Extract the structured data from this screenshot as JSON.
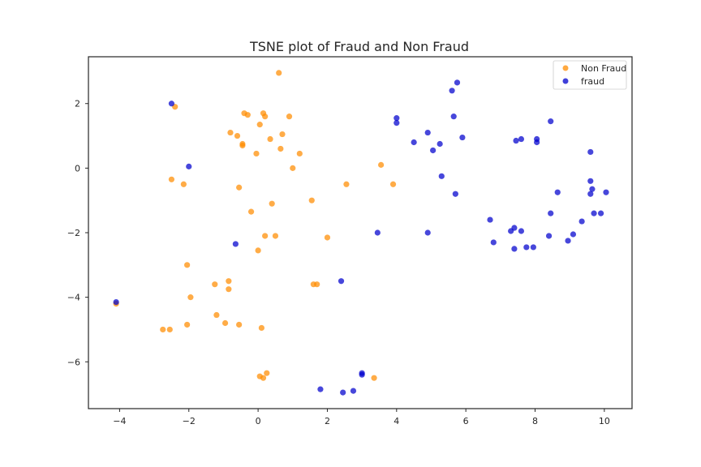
{
  "chart_data": {
    "type": "scatter",
    "title": "TSNE plot of Fraud and Non Fraud",
    "xlabel": "",
    "ylabel": "",
    "xlim": [
      -4.9,
      10.8
    ],
    "ylim": [
      -7.45,
      3.45
    ],
    "xticks": [
      -4,
      -2,
      0,
      2,
      4,
      6,
      8,
      10
    ],
    "yticks": [
      2,
      0,
      -2,
      -4,
      -6
    ],
    "xtick_labels": [
      "−4",
      "−2",
      "0",
      "2",
      "4",
      "6",
      "8",
      "10"
    ],
    "ytick_labels": [
      "2",
      "0",
      "−2",
      "−4",
      "−6"
    ],
    "grid": false,
    "legend_position": "top-right",
    "series": [
      {
        "name": "Non Fraud",
        "color": "#ff8c00",
        "points": [
          [
            0.6,
            2.95
          ],
          [
            -2.4,
            1.9
          ],
          [
            -0.4,
            1.7
          ],
          [
            -0.3,
            1.65
          ],
          [
            0.15,
            1.7
          ],
          [
            0.2,
            1.6
          ],
          [
            0.9,
            1.6
          ],
          [
            0.05,
            1.35
          ],
          [
            -0.8,
            1.1
          ],
          [
            0.7,
            1.05
          ],
          [
            -0.6,
            1.0
          ],
          [
            0.35,
            0.9
          ],
          [
            -0.45,
            0.75
          ],
          [
            -0.45,
            0.7
          ],
          [
            0.65,
            0.6
          ],
          [
            -0.05,
            0.45
          ],
          [
            1.2,
            0.45
          ],
          [
            1.0,
            0.0
          ],
          [
            3.55,
            0.1
          ],
          [
            -2.5,
            -0.35
          ],
          [
            -2.15,
            -0.5
          ],
          [
            -0.55,
            -0.6
          ],
          [
            2.55,
            -0.5
          ],
          [
            3.9,
            -0.5
          ],
          [
            1.55,
            -1.0
          ],
          [
            0.4,
            -1.1
          ],
          [
            -0.2,
            -1.35
          ],
          [
            0.2,
            -2.1
          ],
          [
            0.5,
            -2.1
          ],
          [
            2.0,
            -2.15
          ],
          [
            0.0,
            -2.55
          ],
          [
            -2.05,
            -3.0
          ],
          [
            -0.85,
            -3.5
          ],
          [
            -1.25,
            -3.6
          ],
          [
            1.6,
            -3.6
          ],
          [
            1.7,
            -3.6
          ],
          [
            -0.85,
            -3.75
          ],
          [
            -1.95,
            -4.0
          ],
          [
            -1.2,
            -4.55
          ],
          [
            -0.95,
            -4.8
          ],
          [
            -2.05,
            -4.85
          ],
          [
            -0.55,
            -4.85
          ],
          [
            0.1,
            -4.95
          ],
          [
            -2.75,
            -5.0
          ],
          [
            -2.55,
            -5.0
          ],
          [
            0.25,
            -6.35
          ],
          [
            0.05,
            -6.45
          ],
          [
            0.15,
            -6.5
          ],
          [
            3.35,
            -6.5
          ],
          [
            -4.1,
            -4.2
          ]
        ]
      },
      {
        "name": "fraud",
        "color": "#0000cd",
        "points": [
          [
            -2.5,
            2.0
          ],
          [
            -2.0,
            0.05
          ],
          [
            -0.65,
            -2.35
          ],
          [
            -4.1,
            -4.15
          ],
          [
            2.4,
            -3.5
          ],
          [
            3.45,
            -2.0
          ],
          [
            1.8,
            -6.85
          ],
          [
            2.45,
            -6.95
          ],
          [
            2.75,
            -6.9
          ],
          [
            3.0,
            -6.35
          ],
          [
            3.0,
            -6.4
          ],
          [
            4.0,
            1.55
          ],
          [
            4.0,
            1.4
          ],
          [
            4.9,
            1.1
          ],
          [
            4.5,
            0.8
          ],
          [
            5.05,
            0.55
          ],
          [
            5.25,
            0.75
          ],
          [
            5.3,
            -0.25
          ],
          [
            4.9,
            -2.0
          ],
          [
            5.6,
            2.4
          ],
          [
            5.75,
            2.65
          ],
          [
            5.65,
            1.6
          ],
          [
            5.9,
            0.95
          ],
          [
            5.7,
            -0.8
          ],
          [
            6.7,
            -1.6
          ],
          [
            6.8,
            -2.3
          ],
          [
            7.3,
            -1.95
          ],
          [
            7.4,
            -1.85
          ],
          [
            7.6,
            -1.95
          ],
          [
            7.4,
            -2.5
          ],
          [
            7.75,
            -2.45
          ],
          [
            7.95,
            -2.45
          ],
          [
            7.45,
            0.85
          ],
          [
            7.6,
            0.9
          ],
          [
            8.05,
            0.8
          ],
          [
            8.05,
            0.9
          ],
          [
            8.45,
            1.45
          ],
          [
            8.45,
            -1.4
          ],
          [
            8.4,
            -2.1
          ],
          [
            8.65,
            -0.75
          ],
          [
            8.95,
            -2.25
          ],
          [
            9.1,
            -2.05
          ],
          [
            9.35,
            -1.65
          ],
          [
            9.6,
            0.5
          ],
          [
            9.6,
            -0.4
          ],
          [
            9.6,
            -0.8
          ],
          [
            9.65,
            -0.65
          ],
          [
            9.7,
            -1.4
          ],
          [
            9.9,
            -1.4
          ],
          [
            10.05,
            -0.75
          ]
        ]
      }
    ]
  }
}
